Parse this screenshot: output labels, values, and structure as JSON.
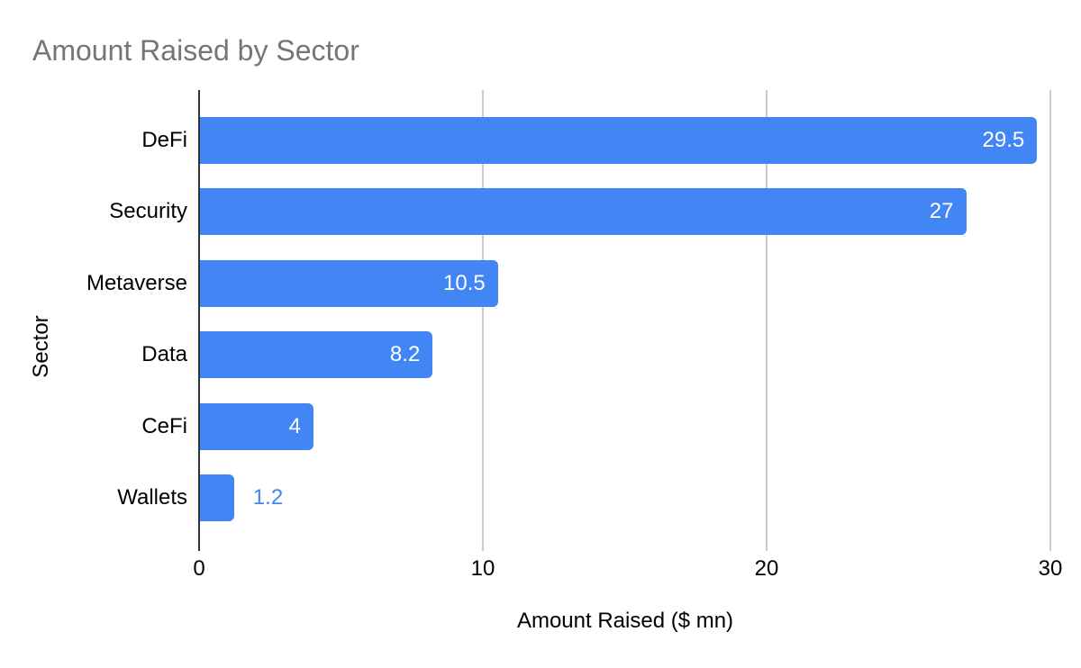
{
  "chart_data": {
    "type": "bar",
    "orientation": "horizontal",
    "title": "Amount Raised by Sector",
    "xlabel": "Amount Raised ($ mn)",
    "ylabel": "Sector",
    "categories": [
      "DeFi",
      "Security",
      "Metaverse",
      "Data",
      "CeFi",
      "Wallets"
    ],
    "values": [
      29.5,
      27,
      10.5,
      8.2,
      4,
      1.2
    ],
    "value_labels": [
      "29.5",
      "27",
      "10.5",
      "8.2",
      "4",
      "1.2"
    ],
    "xlim": [
      0,
      30
    ],
    "xticks": [
      0,
      10,
      20,
      30
    ],
    "xtick_labels": [
      "0",
      "10",
      "20",
      "30"
    ],
    "grid": true,
    "legend": "none",
    "colors": {
      "bar": "#4285f4",
      "title": "#757575",
      "axis_text": "#000000",
      "label_inside": "#ffffff",
      "label_outside": "#4285f4",
      "gridline": "#cccccc",
      "axis_line": "#333333",
      "background": "#ffffff"
    },
    "label_placement_rule": "inside-right when bar is wide enough, outside-right otherwise"
  }
}
